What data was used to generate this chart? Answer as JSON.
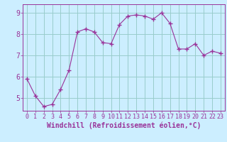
{
  "x": [
    0,
    1,
    2,
    3,
    4,
    5,
    6,
    7,
    8,
    9,
    10,
    11,
    12,
    13,
    14,
    15,
    16,
    17,
    18,
    19,
    20,
    21,
    22,
    23
  ],
  "y": [
    5.9,
    5.1,
    4.6,
    4.7,
    5.4,
    6.3,
    8.1,
    8.25,
    8.1,
    7.6,
    7.55,
    8.45,
    8.85,
    8.9,
    8.85,
    8.7,
    9.0,
    8.5,
    7.3,
    7.3,
    7.55,
    7.0,
    7.2,
    7.1
  ],
  "line_color": "#993399",
  "marker": "+",
  "marker_size": 4,
  "bg_color": "#cceeff",
  "grid_color": "#99cccc",
  "xlabel": "Windchill (Refroidissement éolien,°C)",
  "ylim": [
    4.4,
    9.4
  ],
  "xlim": [
    -0.5,
    23.5
  ],
  "yticks": [
    5,
    6,
    7,
    8,
    9
  ],
  "xticks": [
    0,
    1,
    2,
    3,
    4,
    5,
    6,
    7,
    8,
    9,
    10,
    11,
    12,
    13,
    14,
    15,
    16,
    17,
    18,
    19,
    20,
    21,
    22,
    23
  ],
  "spine_color": "#993399",
  "tick_color": "#993399",
  "label_color": "#993399",
  "font_size_xlabel": 7,
  "font_size_ticks": 7,
  "font_size_xticks": 6
}
